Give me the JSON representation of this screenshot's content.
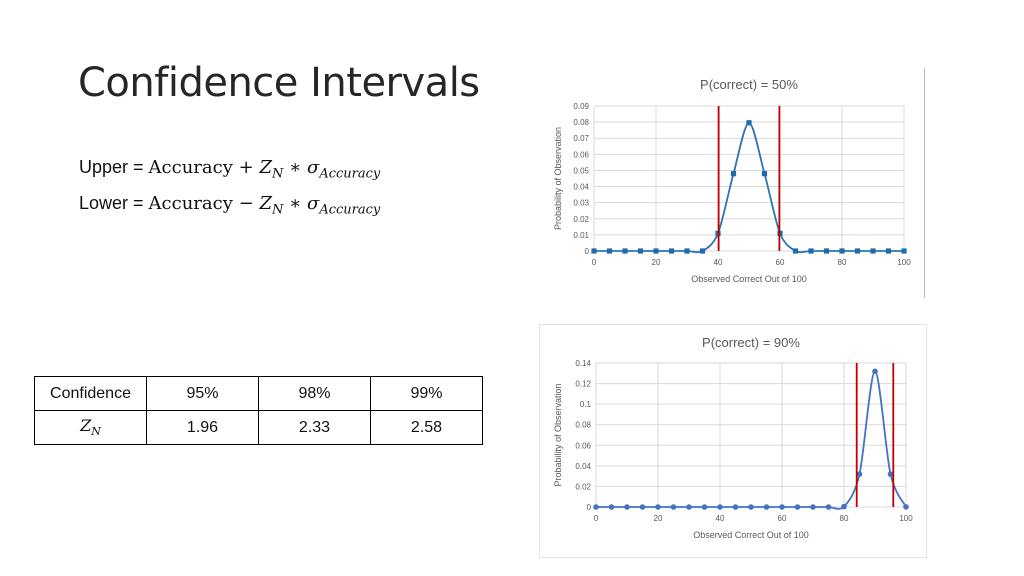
{
  "slide": {
    "title": "Confidence Intervals",
    "upper": {
      "label": "Upper = ",
      "acc": "Accuracy",
      "op": "+",
      "z": "Z",
      "z_sub": "N",
      "star": "∗",
      "sigma": "σ",
      "sigma_sub": "Accuracy"
    },
    "lower": {
      "label": "Lower = ",
      "acc": "Accuracy",
      "op": "−",
      "z": "Z",
      "z_sub": "N",
      "star": "∗",
      "sigma": "σ",
      "sigma_sub": "Accuracy"
    }
  },
  "table": {
    "header": [
      "Confidence",
      "95%",
      "98%",
      "99%"
    ],
    "row_label": {
      "z": "Z",
      "sub": "N"
    },
    "row_values": [
      "1.96",
      "2.33",
      "2.58"
    ]
  },
  "chart_data": [
    {
      "type": "line",
      "title": "P(correct) = 50%",
      "xlabel": "Observed Correct Out of 100",
      "ylabel": "Probability of Observation",
      "xlim": [
        0,
        100
      ],
      "ylim": [
        0,
        0.09
      ],
      "x_ticks": [
        0,
        20,
        40,
        60,
        80,
        100
      ],
      "y_ticks": [
        0,
        0.01,
        0.02,
        0.03,
        0.04,
        0.05,
        0.06,
        0.07,
        0.08,
        0.09
      ],
      "x_tick_labels": [
        "0",
        "20",
        "40",
        "60",
        "80",
        "100"
      ],
      "y_tick_labels": [
        "0",
        "0.01",
        "0.02",
        "0.03",
        "0.04",
        "0.05",
        "0.06",
        "0.07",
        "0.08",
        "0.09"
      ],
      "marker": "square",
      "grid": true,
      "series": [
        {
          "x": [
            0,
            5,
            10,
            15,
            20,
            25,
            30,
            35,
            40,
            45,
            50,
            55,
            60,
            65,
            70,
            75,
            80,
            85,
            90,
            95,
            100
          ],
          "y": [
            0,
            0,
            0,
            0,
            0,
            0,
            0,
            0,
            0.011,
            0.048,
            0.0796,
            0.048,
            0.011,
            0,
            0,
            0,
            0,
            0,
            0,
            0,
            0
          ]
        }
      ],
      "vlines": [
        40.2,
        59.8
      ],
      "colors": {
        "line": "#2e75b6",
        "marker": "#1f6bb0",
        "vline": "#c00000"
      }
    },
    {
      "type": "line",
      "title": "P(correct) = 90%",
      "xlabel": "Observed Correct Out of 100",
      "ylabel": "Probability of Observation",
      "xlim": [
        0,
        100
      ],
      "ylim": [
        0,
        0.14
      ],
      "x_ticks": [
        0,
        20,
        40,
        60,
        80,
        100
      ],
      "y_ticks": [
        0,
        0.02,
        0.04,
        0.06,
        0.08,
        0.1,
        0.12,
        0.14
      ],
      "x_tick_labels": [
        "0",
        "20",
        "40",
        "60",
        "80",
        "100"
      ],
      "y_tick_labels": [
        "0",
        "0.02",
        "0.04",
        "0.06",
        "0.08",
        "0.1",
        "0.12",
        "0.14"
      ],
      "marker": "circle",
      "grid": true,
      "series": [
        {
          "x": [
            0,
            5,
            10,
            15,
            20,
            25,
            30,
            35,
            40,
            45,
            50,
            55,
            60,
            65,
            70,
            75,
            80,
            85,
            90,
            95,
            100
          ],
          "y": [
            0,
            0,
            0,
            0,
            0,
            0,
            0,
            0,
            0,
            0,
            0,
            0,
            0,
            0,
            0,
            0,
            0.0004,
            0.0319,
            0.1319,
            0.0319,
            0.0001
          ]
        }
      ],
      "vlines": [
        84.1,
        95.9
      ],
      "colors": {
        "line": "#4472c4",
        "marker": "#4472c4",
        "vline": "#c00000"
      }
    }
  ]
}
